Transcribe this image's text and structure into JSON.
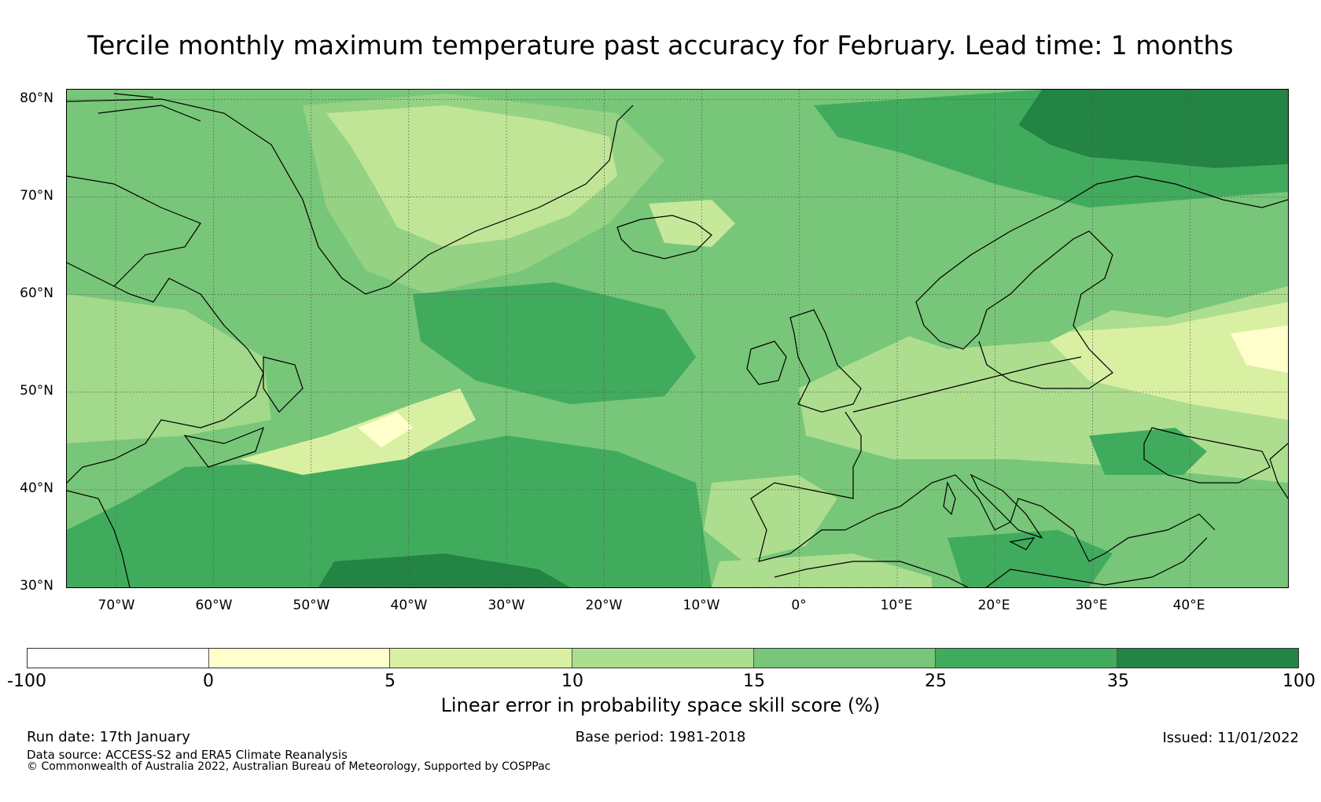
{
  "title": "Tercile monthly maximum temperature past accuracy for February. Lead time: 1 months",
  "map": {
    "lat_labels": [
      "80°N",
      "70°N",
      "60°N",
      "50°N",
      "40°N",
      "30°N"
    ],
    "lon_labels": [
      "70°W",
      "60°W",
      "50°W",
      "40°W",
      "30°W",
      "20°W",
      "10°W",
      "0°",
      "10°E",
      "20°E",
      "30°E",
      "40°E"
    ],
    "extent": {
      "lon_min": -75,
      "lon_max": 50,
      "lat_min": 30,
      "lat_max": 81
    },
    "regions": [
      {
        "name": "far-north-east-high-skill",
        "class": "35 to 100"
      },
      {
        "name": "greenland-interior",
        "class": "5 to 10"
      },
      {
        "name": "central-atlantic",
        "class": "25 to 35"
      },
      {
        "name": "subtropical-atlantic",
        "class": "25 to 35"
      },
      {
        "name": "eastern-europe-low",
        "class": "5 to 10"
      },
      {
        "name": "mediterranean",
        "class": "15 to 25"
      }
    ]
  },
  "colorbar": {
    "label": "Linear error in probability space skill score (%)",
    "ticks": [
      "-100",
      "0",
      "5",
      "10",
      "15",
      "25",
      "35",
      "100"
    ],
    "colors": [
      "#ffffff",
      "#ffffcc",
      "#d9f0a3",
      "#addd8e",
      "#78c679",
      "#41ab5d",
      "#238443"
    ]
  },
  "footer": {
    "run_date": "Run date: 17th January",
    "base_period": "Base period: 1981-2018",
    "issued": "Issued: 11/01/2022",
    "data_source": "Data source: ACCESS-S2 and ERA5 Climate Reanalysis",
    "copyright": "© Commonwealth of Australia 2022, Australian Bureau of Meteorology, Supported by COSPPac"
  }
}
